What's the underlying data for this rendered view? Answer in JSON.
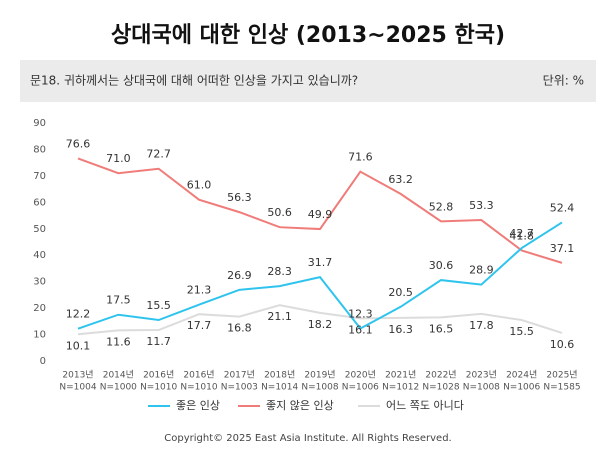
{
  "chart_data": {
    "type": "line",
    "title": "상대국에 대한 인상 (2013~2025 한국)",
    "subtitle": "문18. 귀하께서는 상대국에 대해 어떠한 인상을 가지고 있습니까?",
    "unit_label": "단위: %",
    "footer": "Copyright© 2025 East Asia Institute. All Rights Reserved.",
    "categories": [
      "2013년",
      "2014년",
      "2016년",
      "2016년",
      "2017년",
      "2018년",
      "2019년",
      "2020년",
      "2021년",
      "2022년",
      "2023년",
      "2024년",
      "2025년"
    ],
    "sample_sizes": [
      "N=1004",
      "N=1000",
      "N=1010",
      "N=1010",
      "N=1003",
      "N=1014",
      "N=1008",
      "N=1006",
      "N=1012",
      "N=1028",
      "N=1008",
      "N=1006",
      "N=1585"
    ],
    "ylim": [
      0,
      90
    ],
    "yticks": [
      0,
      10,
      20,
      30,
      40,
      50,
      60,
      70,
      80,
      90
    ],
    "grid": false,
    "legend": "bottom",
    "series": [
      {
        "name": "좋은 인상",
        "color": "#2ec4ee",
        "values": [
          12.2,
          17.5,
          15.5,
          21.3,
          26.9,
          28.3,
          31.7,
          12.3,
          20.5,
          30.6,
          28.9,
          42.7,
          52.4
        ],
        "value_labels": [
          "12.2",
          "17.5",
          "15.5",
          "21.3",
          "26.9",
          "28.3",
          "31.7",
          "12.3",
          "20.5",
          "30.6",
          "28.9",
          "42.7",
          "52.4"
        ]
      },
      {
        "name": "좋지 않은 인상",
        "color": "#f07c7a",
        "values": [
          76.6,
          71.0,
          72.7,
          61.0,
          56.3,
          50.6,
          49.9,
          71.6,
          63.2,
          52.8,
          53.3,
          41.8,
          37.1
        ],
        "value_labels": [
          "76.6",
          "71.0",
          "72.7",
          "61.0",
          "56.3",
          "50.6",
          "49.9",
          "71.6",
          "63.2",
          "52.8",
          "53.3",
          "41.8",
          "37.1"
        ]
      },
      {
        "name": "어느 쪽도 아니다",
        "color": "#dcdcdc",
        "values": [
          10.1,
          11.6,
          11.7,
          17.7,
          16.8,
          21.1,
          18.2,
          16.1,
          16.3,
          16.5,
          17.8,
          15.5,
          10.6
        ],
        "value_labels": [
          "10.1",
          "11.6",
          "11.7",
          "17.7",
          "16.8",
          "21.1",
          "18.2",
          "16.1",
          "16.3",
          "16.5",
          "17.8",
          "15.5",
          "10.6"
        ]
      }
    ]
  }
}
